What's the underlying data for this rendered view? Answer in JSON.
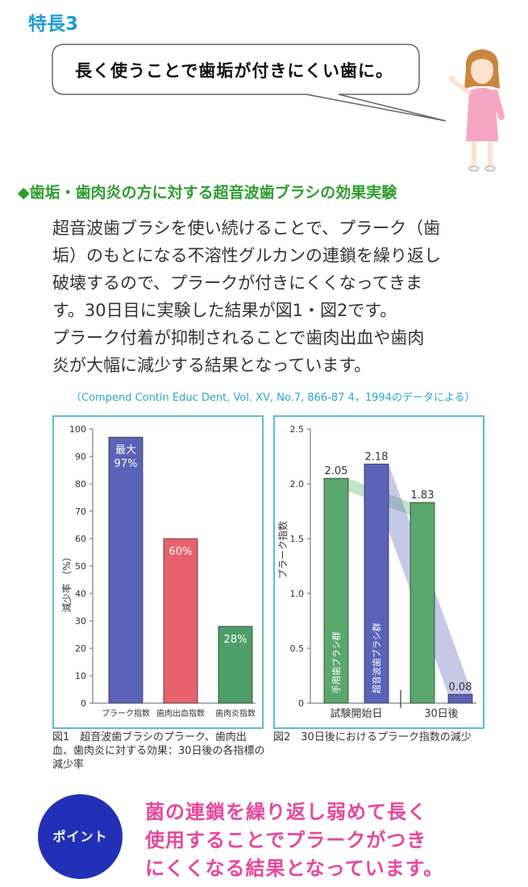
{
  "feature_label": "特長3",
  "speech": {
    "text": "長く使うことで歯垢が付きにくい歯に。"
  },
  "section_title": "◆歯垢・歯肉炎の方に対する超音波歯ブラシの効果実験",
  "body_lines": [
    "超音波歯ブラシを使い続けることで、プラーク（歯",
    "垢）のもとになる不溶性グルカンの連鎖を繰り返し",
    "破壊するので、プラークが付きにくくなってきま",
    "す。30日目に実験した結果が図1・図2です。",
    "プラーク付着が抑制されることで歯肉出血や歯肉",
    "炎が大幅に減少する結果となっています。"
  ],
  "citation": "（Compend Contin Educ Dent, Vol. XV, No.7, 866-87 4，1994のデータによる）",
  "chart_data": [
    {
      "type": "bar",
      "ylabel": "減少率 （%）",
      "ylim": [
        0,
        100
      ],
      "yticks": [
        "0",
        "10",
        "20",
        "30",
        "40",
        "50",
        "60",
        "70",
        "80",
        "90",
        "100"
      ],
      "categories": [
        "プラーク指数",
        "歯肉出血指数",
        "歯肉炎指数"
      ],
      "values": [
        97,
        60,
        28
      ],
      "value_labels": [
        "最大\n97%",
        "60%",
        "28%"
      ],
      "colors": [
        "#5a63b8",
        "#e8626d",
        "#4e9e6a"
      ],
      "caption": "図1　超音波歯ブラシのプラーク、歯肉出血、歯肉炎に対する効果：30日後の各指標の減少率"
    },
    {
      "type": "bar",
      "ylabel": "プラーク指数",
      "ylim": [
        0,
        2.5
      ],
      "yticks": [
        "0",
        "0.5",
        "1.0",
        "1.5",
        "2.0",
        "2.5"
      ],
      "groups": [
        "試験開始日",
        "30日後"
      ],
      "series": [
        {
          "name": "手用歯ブラシ群",
          "values": [
            2.05,
            1.83
          ],
          "color": "#5aa86e"
        },
        {
          "name": "超音波歯ブラシ群",
          "values": [
            2.18,
            0.08
          ],
          "color": "#5a63b8"
        }
      ],
      "value_labels": [
        "2.05",
        "2.18",
        "1.83",
        "0.08"
      ],
      "caption": "図2　30日後におけるプラーク指数の減少"
    }
  ],
  "point": {
    "label": "ポイント",
    "lines": [
      "菌の連鎖を繰り返し弱めて長く",
      "使用することでプラークがつき",
      "にくくなる結果となっています。"
    ]
  },
  "colors": {
    "accent_blue": "#1f9bd8",
    "title_green": "#2e9d2e",
    "point_pink": "#e8479a",
    "point_navy": "#2230b8",
    "panel_border": "#5bbcd0"
  }
}
